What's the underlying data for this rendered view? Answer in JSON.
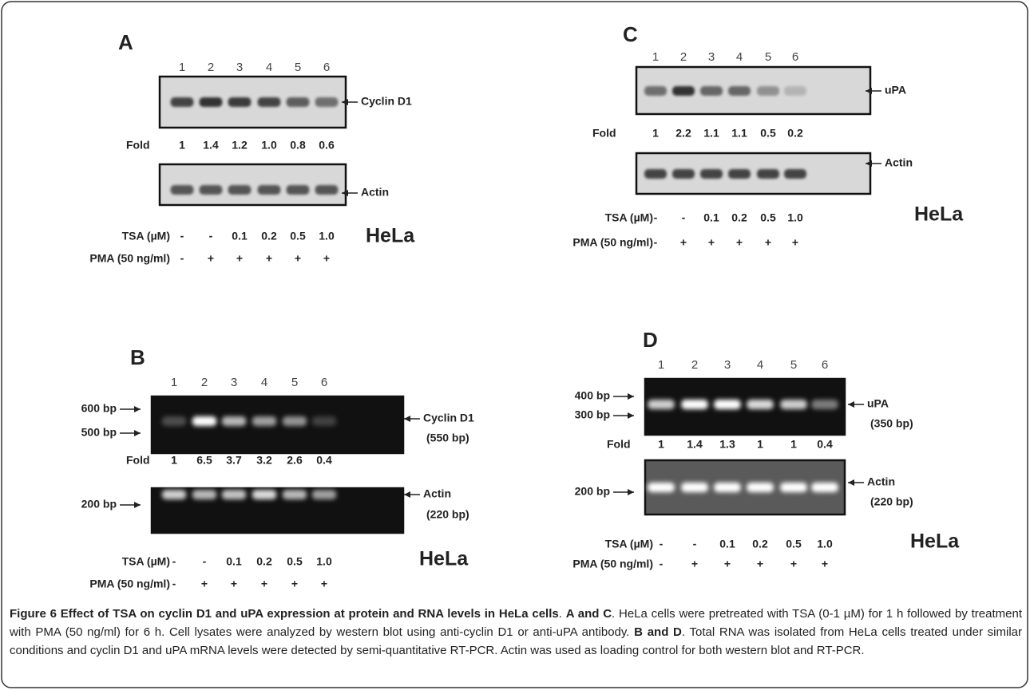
{
  "panels": [
    {
      "label": "A",
      "lanes": [
        "1",
        "2",
        "3",
        "4",
        "5",
        "6"
      ],
      "blots": [
        {
          "name": [
            "Cyclin D1"
          ],
          "markers": []
        },
        {
          "name": [
            "Actin"
          ],
          "markers": []
        }
      ],
      "fold_label": "Fold",
      "fold": [
        "1",
        "1.4",
        "1.2",
        "1.0",
        "0.8",
        "0.6"
      ],
      "treatments": [
        {
          "label": "TSA (µM)",
          "values": [
            "-",
            "-",
            "0.1",
            "0.2",
            "0.5",
            "1.0"
          ]
        },
        {
          "label": "PMA (50 ng/ml)",
          "values": [
            "-",
            "+",
            "+",
            "+",
            "+",
            "+"
          ]
        }
      ],
      "cell": "HeLa"
    },
    {
      "label": "B",
      "lanes": [
        "1",
        "2",
        "3",
        "4",
        "5",
        "6"
      ],
      "blots": [
        {
          "name": [
            "Cyclin D1",
            "(550 bp)"
          ],
          "markers": [
            "600 bp",
            "500 bp"
          ]
        },
        {
          "name": [
            "Actin",
            "(220 bp)"
          ],
          "markers": [
            "200 bp"
          ]
        }
      ],
      "fold_label": "Fold",
      "fold": [
        "1",
        "6.5",
        "3.7",
        "3.2",
        "2.6",
        "0.4"
      ],
      "treatments": [
        {
          "label": "TSA (µM)",
          "values": [
            "-",
            "-",
            "0.1",
            "0.2",
            "0.5",
            "1.0"
          ]
        },
        {
          "label": "PMA (50 ng/ml)",
          "values": [
            "-",
            "+",
            "+",
            "+",
            "+",
            "+"
          ]
        }
      ],
      "cell": "HeLa"
    },
    {
      "label": "C",
      "lanes": [
        "1",
        "2",
        "3",
        "4",
        "5",
        "6"
      ],
      "blots": [
        {
          "name": [
            "uPA"
          ],
          "markers": []
        },
        {
          "name": [
            "Actin"
          ],
          "markers": []
        }
      ],
      "fold_label": "Fold",
      "fold": [
        "1",
        "2.2",
        "1.1",
        "1.1",
        "0.5",
        "0.2"
      ],
      "treatments": [
        {
          "label": "TSA (µM)",
          "values": [
            "-",
            "-",
            "0.1",
            "0.2",
            "0.5",
            "1.0"
          ]
        },
        {
          "label": "PMA (50 ng/ml)",
          "values": [
            "-",
            "+",
            "+",
            "+",
            "+",
            "+"
          ]
        }
      ],
      "cell": "HeLa"
    },
    {
      "label": "D",
      "lanes": [
        "1",
        "2",
        "3",
        "4",
        "5",
        "6"
      ],
      "blots": [
        {
          "name": [
            "uPA",
            "(350 bp)"
          ],
          "markers": [
            "400 bp",
            "300 bp"
          ]
        },
        {
          "name": [
            "Actin",
            "(220 bp)"
          ],
          "markers": [
            "200 bp"
          ]
        }
      ],
      "fold_label": "Fold",
      "fold": [
        "1",
        "1.4",
        "1.3",
        "1",
        "1",
        "0.4"
      ],
      "treatments": [
        {
          "label": "TSA (µM)",
          "values": [
            "-",
            "-",
            "0.1",
            "0.2",
            "0.5",
            "1.0"
          ]
        },
        {
          "label": "PMA (50 ng/ml)",
          "values": [
            "-",
            "+",
            "+",
            "+",
            "+",
            "+"
          ]
        }
      ],
      "cell": "HeLa"
    }
  ],
  "caption": [
    {
      "text": "Figure 6 Effect of TSA on cyclin D1 and uPA expression at protein and RNA levels in HeLa cells",
      "bold": true
    },
    {
      "text": ". "
    },
    {
      "text": "A and C",
      "bold": true
    },
    {
      "text": ". HeLa cells were pretreated with TSA (0-1 µM) for 1 h followed by treatment with PMA (50 ng/ml) for 6 h. Cell lysates were analyzed by western blot using anti-cyclin D1 or anti-uPA antibody. "
    },
    {
      "text": "B and D",
      "bold": true
    },
    {
      "text": ". Total RNA was isolated from HeLa cells treated under similar conditions and cyclin D1 and uPA mRNA levels were detected by semi-quantitative RT-PCR. Actin was used as loading control for both western blot and RT-PCR."
    }
  ]
}
